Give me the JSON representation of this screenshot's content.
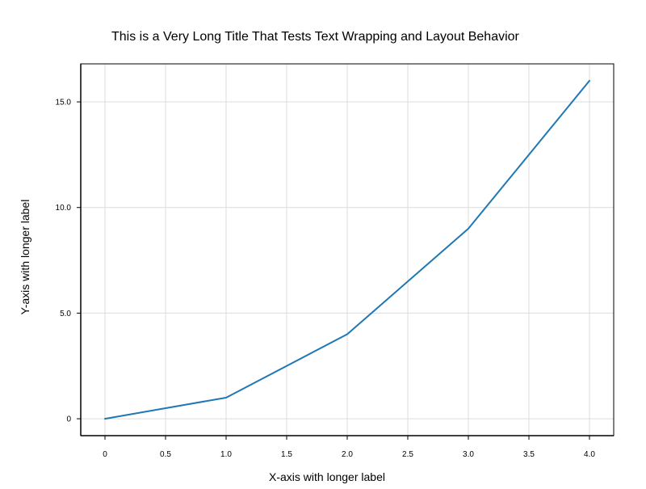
{
  "chart_data": {
    "type": "line",
    "title": "This is a Very Long Title That Tests Text Wrapping and Layout Behavior",
    "xlabel": "X-axis with longer label",
    "ylabel": "Y-axis with longer label",
    "x": [
      0,
      1,
      2,
      3,
      4
    ],
    "series": [
      {
        "values": [
          0,
          1,
          4,
          9,
          16
        ],
        "color": "#1f77b4"
      }
    ],
    "xlim": [
      -0.2,
      4.2
    ],
    "ylim": [
      -0.8,
      16.8
    ],
    "xticks": [
      0,
      0.5,
      1.0,
      1.5,
      2.0,
      2.5,
      3.0,
      3.5,
      4.0
    ],
    "xtick_labels": [
      "0",
      "0.5",
      "1.0",
      "1.5",
      "2.0",
      "2.5",
      "3.0",
      "3.5",
      "4.0"
    ],
    "yticks": [
      0,
      5,
      10,
      15
    ],
    "ytick_labels": [
      "0",
      "5.0",
      "10.0",
      "15.0"
    ],
    "grid": true,
    "legend": "none"
  }
}
